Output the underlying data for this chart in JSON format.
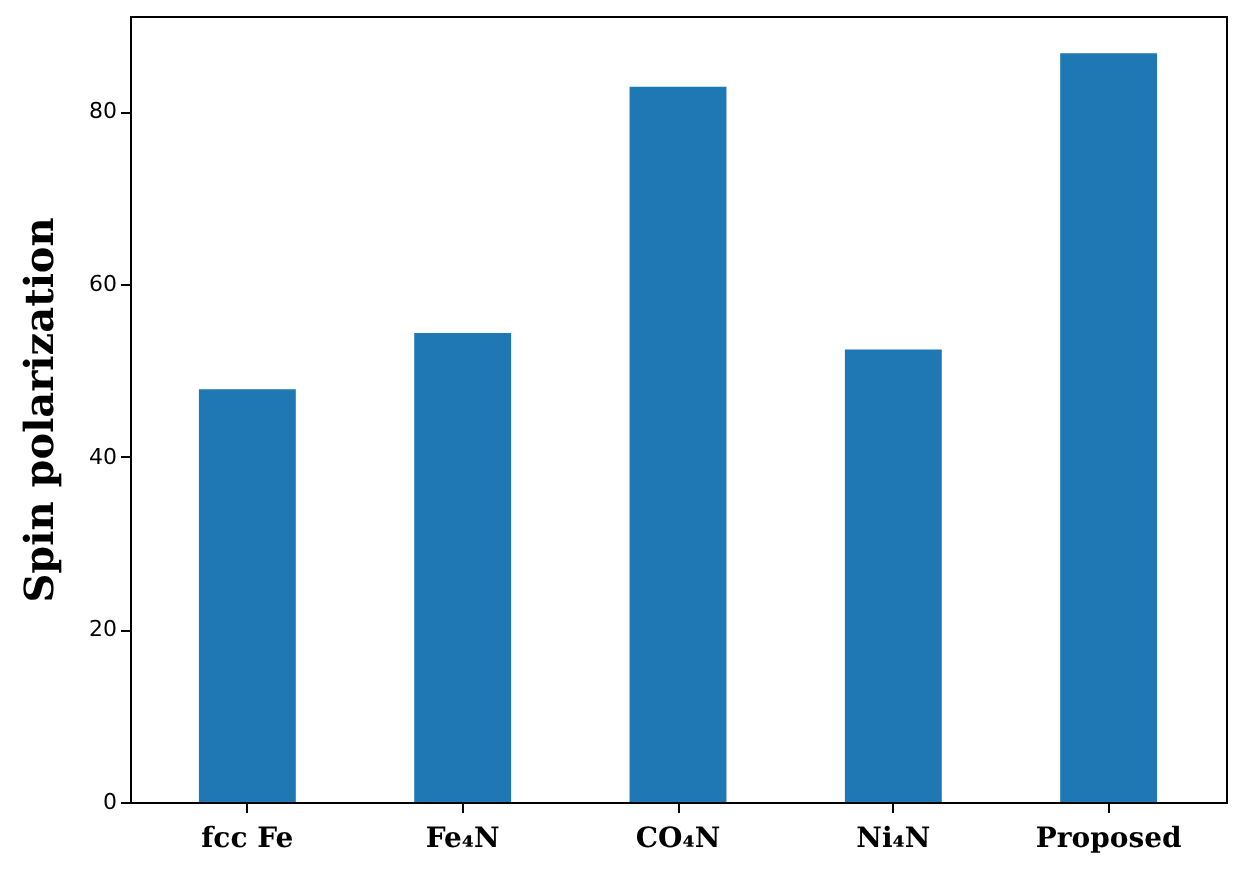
{
  "chart_data": {
    "type": "bar",
    "ylabel": "Spin polarization",
    "categories": [
      "fcc Fe",
      "Fe₄N",
      "CO₄N",
      "Ni₄N",
      "Proposed"
    ],
    "values": [
      47.8,
      54.3,
      82.8,
      52.4,
      86.7
    ],
    "color": "#1f77b4",
    "ylim": [
      0,
      91
    ],
    "yticks": [
      0,
      20,
      40,
      60,
      80
    ],
    "grid": false
  }
}
